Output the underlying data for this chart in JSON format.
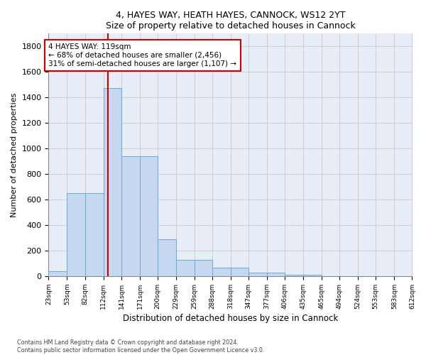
{
  "title1": "4, HAYES WAY, HEATH HAYES, CANNOCK, WS12 2YT",
  "title2": "Size of property relative to detached houses in Cannock",
  "xlabel": "Distribution of detached houses by size in Cannock",
  "ylabel": "Number of detached properties",
  "bin_edges": [
    23,
    53,
    82,
    112,
    141,
    171,
    200,
    229,
    259,
    288,
    318,
    347,
    377,
    406,
    435,
    465,
    494,
    524,
    553,
    583,
    612
  ],
  "bar_heights": [
    40,
    650,
    650,
    1470,
    940,
    940,
    290,
    125,
    125,
    65,
    65,
    25,
    25,
    10,
    10,
    0,
    0,
    0,
    0,
    0
  ],
  "bar_color": "#c5d8f0",
  "bar_edge_color": "#6aaad4",
  "grid_color": "#d0d0d0",
  "bg_color": "#e8eef8",
  "red_line_x": 119,
  "annotation_text": "4 HAYES WAY: 119sqm\n← 68% of detached houses are smaller (2,456)\n31% of semi-detached houses are larger (1,107) →",
  "annotation_box_color": "#ffffff",
  "annotation_edge_color": "#cc0000",
  "ylim": [
    0,
    1900
  ],
  "yticks": [
    0,
    200,
    400,
    600,
    800,
    1000,
    1200,
    1400,
    1600,
    1800
  ],
  "footnote": "Contains HM Land Registry data © Crown copyright and database right 2024.\nContains public sector information licensed under the Open Government Licence v3.0."
}
